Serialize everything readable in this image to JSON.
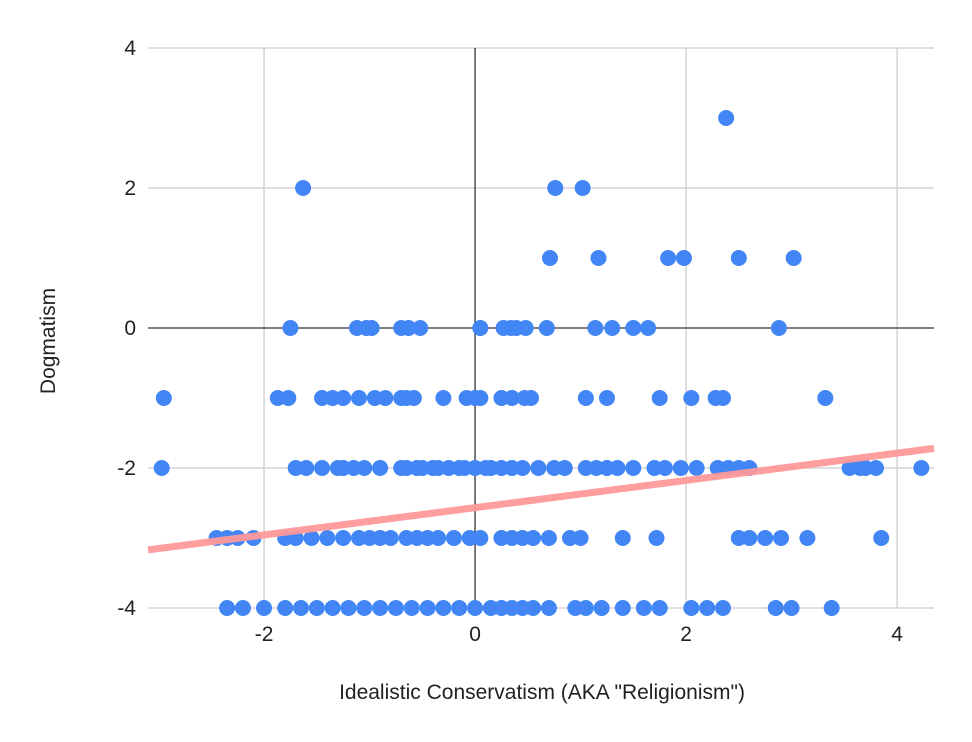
{
  "chart_data": {
    "type": "scatter",
    "title": "",
    "xlabel": "Idealistic Conservatism (AKA \"Religionism\")",
    "ylabel": "Dogmatism",
    "xlim": [
      -3.1,
      4.35
    ],
    "ylim": [
      -4,
      4
    ],
    "xticks": [
      -2,
      0,
      2,
      4
    ],
    "yticks": [
      -4,
      -2,
      0,
      2,
      4
    ],
    "xtick_labels": [
      "-2",
      "0",
      "2",
      "4"
    ],
    "ytick_labels": [
      "-4",
      "-2",
      "0",
      "2",
      "4"
    ],
    "grid": true,
    "legend": "none",
    "colors": {
      "points": "#4285f4",
      "trendline": "#ff9999",
      "grid": "#cccccc",
      "zero_axis": "#333333"
    },
    "trendline": {
      "x": [
        -3.1,
        4.35
      ],
      "y": [
        -3.17,
        -1.72
      ]
    },
    "points": [
      [
        2.38,
        3
      ],
      [
        -1.63,
        2
      ],
      [
        0.76,
        2
      ],
      [
        1.02,
        2
      ],
      [
        0.71,
        1
      ],
      [
        1.17,
        1
      ],
      [
        1.83,
        1
      ],
      [
        1.98,
        1
      ],
      [
        2.5,
        1
      ],
      [
        3.02,
        1
      ],
      [
        -1.75,
        0
      ],
      [
        -1.12,
        0
      ],
      [
        -1.03,
        0
      ],
      [
        -0.98,
        0
      ],
      [
        -0.7,
        0
      ],
      [
        -0.63,
        0
      ],
      [
        -0.52,
        0
      ],
      [
        0.05,
        0
      ],
      [
        0.27,
        0
      ],
      [
        0.34,
        0
      ],
      [
        0.39,
        0
      ],
      [
        0.48,
        0
      ],
      [
        0.68,
        0
      ],
      [
        1.14,
        0
      ],
      [
        1.3,
        0
      ],
      [
        1.5,
        0
      ],
      [
        1.64,
        0
      ],
      [
        2.88,
        0
      ],
      [
        -2.95,
        -1
      ],
      [
        -1.87,
        -1
      ],
      [
        -1.77,
        -1
      ],
      [
        -1.45,
        -1
      ],
      [
        -1.35,
        -1
      ],
      [
        -1.25,
        -1
      ],
      [
        -1.1,
        -1
      ],
      [
        -0.95,
        -1
      ],
      [
        -0.85,
        -1
      ],
      [
        -0.7,
        -1
      ],
      [
        -0.65,
        -1
      ],
      [
        -0.58,
        -1
      ],
      [
        -0.3,
        -1
      ],
      [
        -0.08,
        -1
      ],
      [
        0.0,
        -1
      ],
      [
        0.05,
        -1
      ],
      [
        0.25,
        -1
      ],
      [
        0.35,
        -1
      ],
      [
        0.47,
        -1
      ],
      [
        0.53,
        -1
      ],
      [
        1.05,
        -1
      ],
      [
        1.25,
        -1
      ],
      [
        1.75,
        -1
      ],
      [
        2.05,
        -1
      ],
      [
        2.28,
        -1
      ],
      [
        2.35,
        -1
      ],
      [
        3.32,
        -1
      ],
      [
        -2.97,
        -2
      ],
      [
        -1.7,
        -2
      ],
      [
        -1.6,
        -2
      ],
      [
        -1.45,
        -2
      ],
      [
        -1.3,
        -2
      ],
      [
        -1.25,
        -2
      ],
      [
        -1.15,
        -2
      ],
      [
        -1.05,
        -2
      ],
      [
        -0.9,
        -2
      ],
      [
        -0.7,
        -2
      ],
      [
        -0.65,
        -2
      ],
      [
        -0.55,
        -2
      ],
      [
        -0.5,
        -2
      ],
      [
        -0.4,
        -2
      ],
      [
        -0.35,
        -2
      ],
      [
        -0.25,
        -2
      ],
      [
        -0.15,
        -2
      ],
      [
        -0.1,
        -2
      ],
      [
        0.0,
        -2
      ],
      [
        0.1,
        -2
      ],
      [
        0.15,
        -2
      ],
      [
        0.25,
        -2
      ],
      [
        0.35,
        -2
      ],
      [
        0.45,
        -2
      ],
      [
        0.6,
        -2
      ],
      [
        0.75,
        -2
      ],
      [
        0.85,
        -2
      ],
      [
        1.05,
        -2
      ],
      [
        1.15,
        -2
      ],
      [
        1.25,
        -2
      ],
      [
        1.35,
        -2
      ],
      [
        1.5,
        -2
      ],
      [
        1.7,
        -2
      ],
      [
        1.8,
        -2
      ],
      [
        1.95,
        -2
      ],
      [
        2.1,
        -2
      ],
      [
        2.3,
        -2
      ],
      [
        2.4,
        -2
      ],
      [
        2.5,
        -2
      ],
      [
        2.6,
        -2
      ],
      [
        3.55,
        -2
      ],
      [
        3.65,
        -2
      ],
      [
        3.7,
        -2
      ],
      [
        3.8,
        -2
      ],
      [
        4.23,
        -2
      ],
      [
        -2.45,
        -3
      ],
      [
        -2.35,
        -3
      ],
      [
        -2.25,
        -3
      ],
      [
        -2.1,
        -3
      ],
      [
        -1.8,
        -3
      ],
      [
        -1.7,
        -3
      ],
      [
        -1.55,
        -3
      ],
      [
        -1.4,
        -3
      ],
      [
        -1.25,
        -3
      ],
      [
        -1.1,
        -3
      ],
      [
        -1.0,
        -3
      ],
      [
        -0.9,
        -3
      ],
      [
        -0.8,
        -3
      ],
      [
        -0.65,
        -3
      ],
      [
        -0.55,
        -3
      ],
      [
        -0.45,
        -3
      ],
      [
        -0.35,
        -3
      ],
      [
        -0.2,
        -3
      ],
      [
        -0.05,
        -3
      ],
      [
        0.05,
        -3
      ],
      [
        0.25,
        -3
      ],
      [
        0.35,
        -3
      ],
      [
        0.45,
        -3
      ],
      [
        0.55,
        -3
      ],
      [
        0.7,
        -3
      ],
      [
        0.9,
        -3
      ],
      [
        1.0,
        -3
      ],
      [
        1.4,
        -3
      ],
      [
        1.72,
        -3
      ],
      [
        2.5,
        -3
      ],
      [
        2.6,
        -3
      ],
      [
        2.75,
        -3
      ],
      [
        2.9,
        -3
      ],
      [
        3.15,
        -3
      ],
      [
        3.85,
        -3
      ],
      [
        -2.35,
        -4
      ],
      [
        -2.2,
        -4
      ],
      [
        -2.0,
        -4
      ],
      [
        -1.8,
        -4
      ],
      [
        -1.65,
        -4
      ],
      [
        -1.5,
        -4
      ],
      [
        -1.35,
        -4
      ],
      [
        -1.2,
        -4
      ],
      [
        -1.05,
        -4
      ],
      [
        -0.9,
        -4
      ],
      [
        -0.75,
        -4
      ],
      [
        -0.6,
        -4
      ],
      [
        -0.45,
        -4
      ],
      [
        -0.3,
        -4
      ],
      [
        -0.15,
        -4
      ],
      [
        0.0,
        -4
      ],
      [
        0.15,
        -4
      ],
      [
        0.25,
        -4
      ],
      [
        0.35,
        -4
      ],
      [
        0.45,
        -4
      ],
      [
        0.55,
        -4
      ],
      [
        0.7,
        -4
      ],
      [
        0.95,
        -4
      ],
      [
        1.05,
        -4
      ],
      [
        1.2,
        -4
      ],
      [
        1.4,
        -4
      ],
      [
        1.6,
        -4
      ],
      [
        1.75,
        -4
      ],
      [
        2.05,
        -4
      ],
      [
        2.2,
        -4
      ],
      [
        2.35,
        -4
      ],
      [
        2.85,
        -4
      ],
      [
        3.0,
        -4
      ],
      [
        3.38,
        -4
      ]
    ]
  }
}
